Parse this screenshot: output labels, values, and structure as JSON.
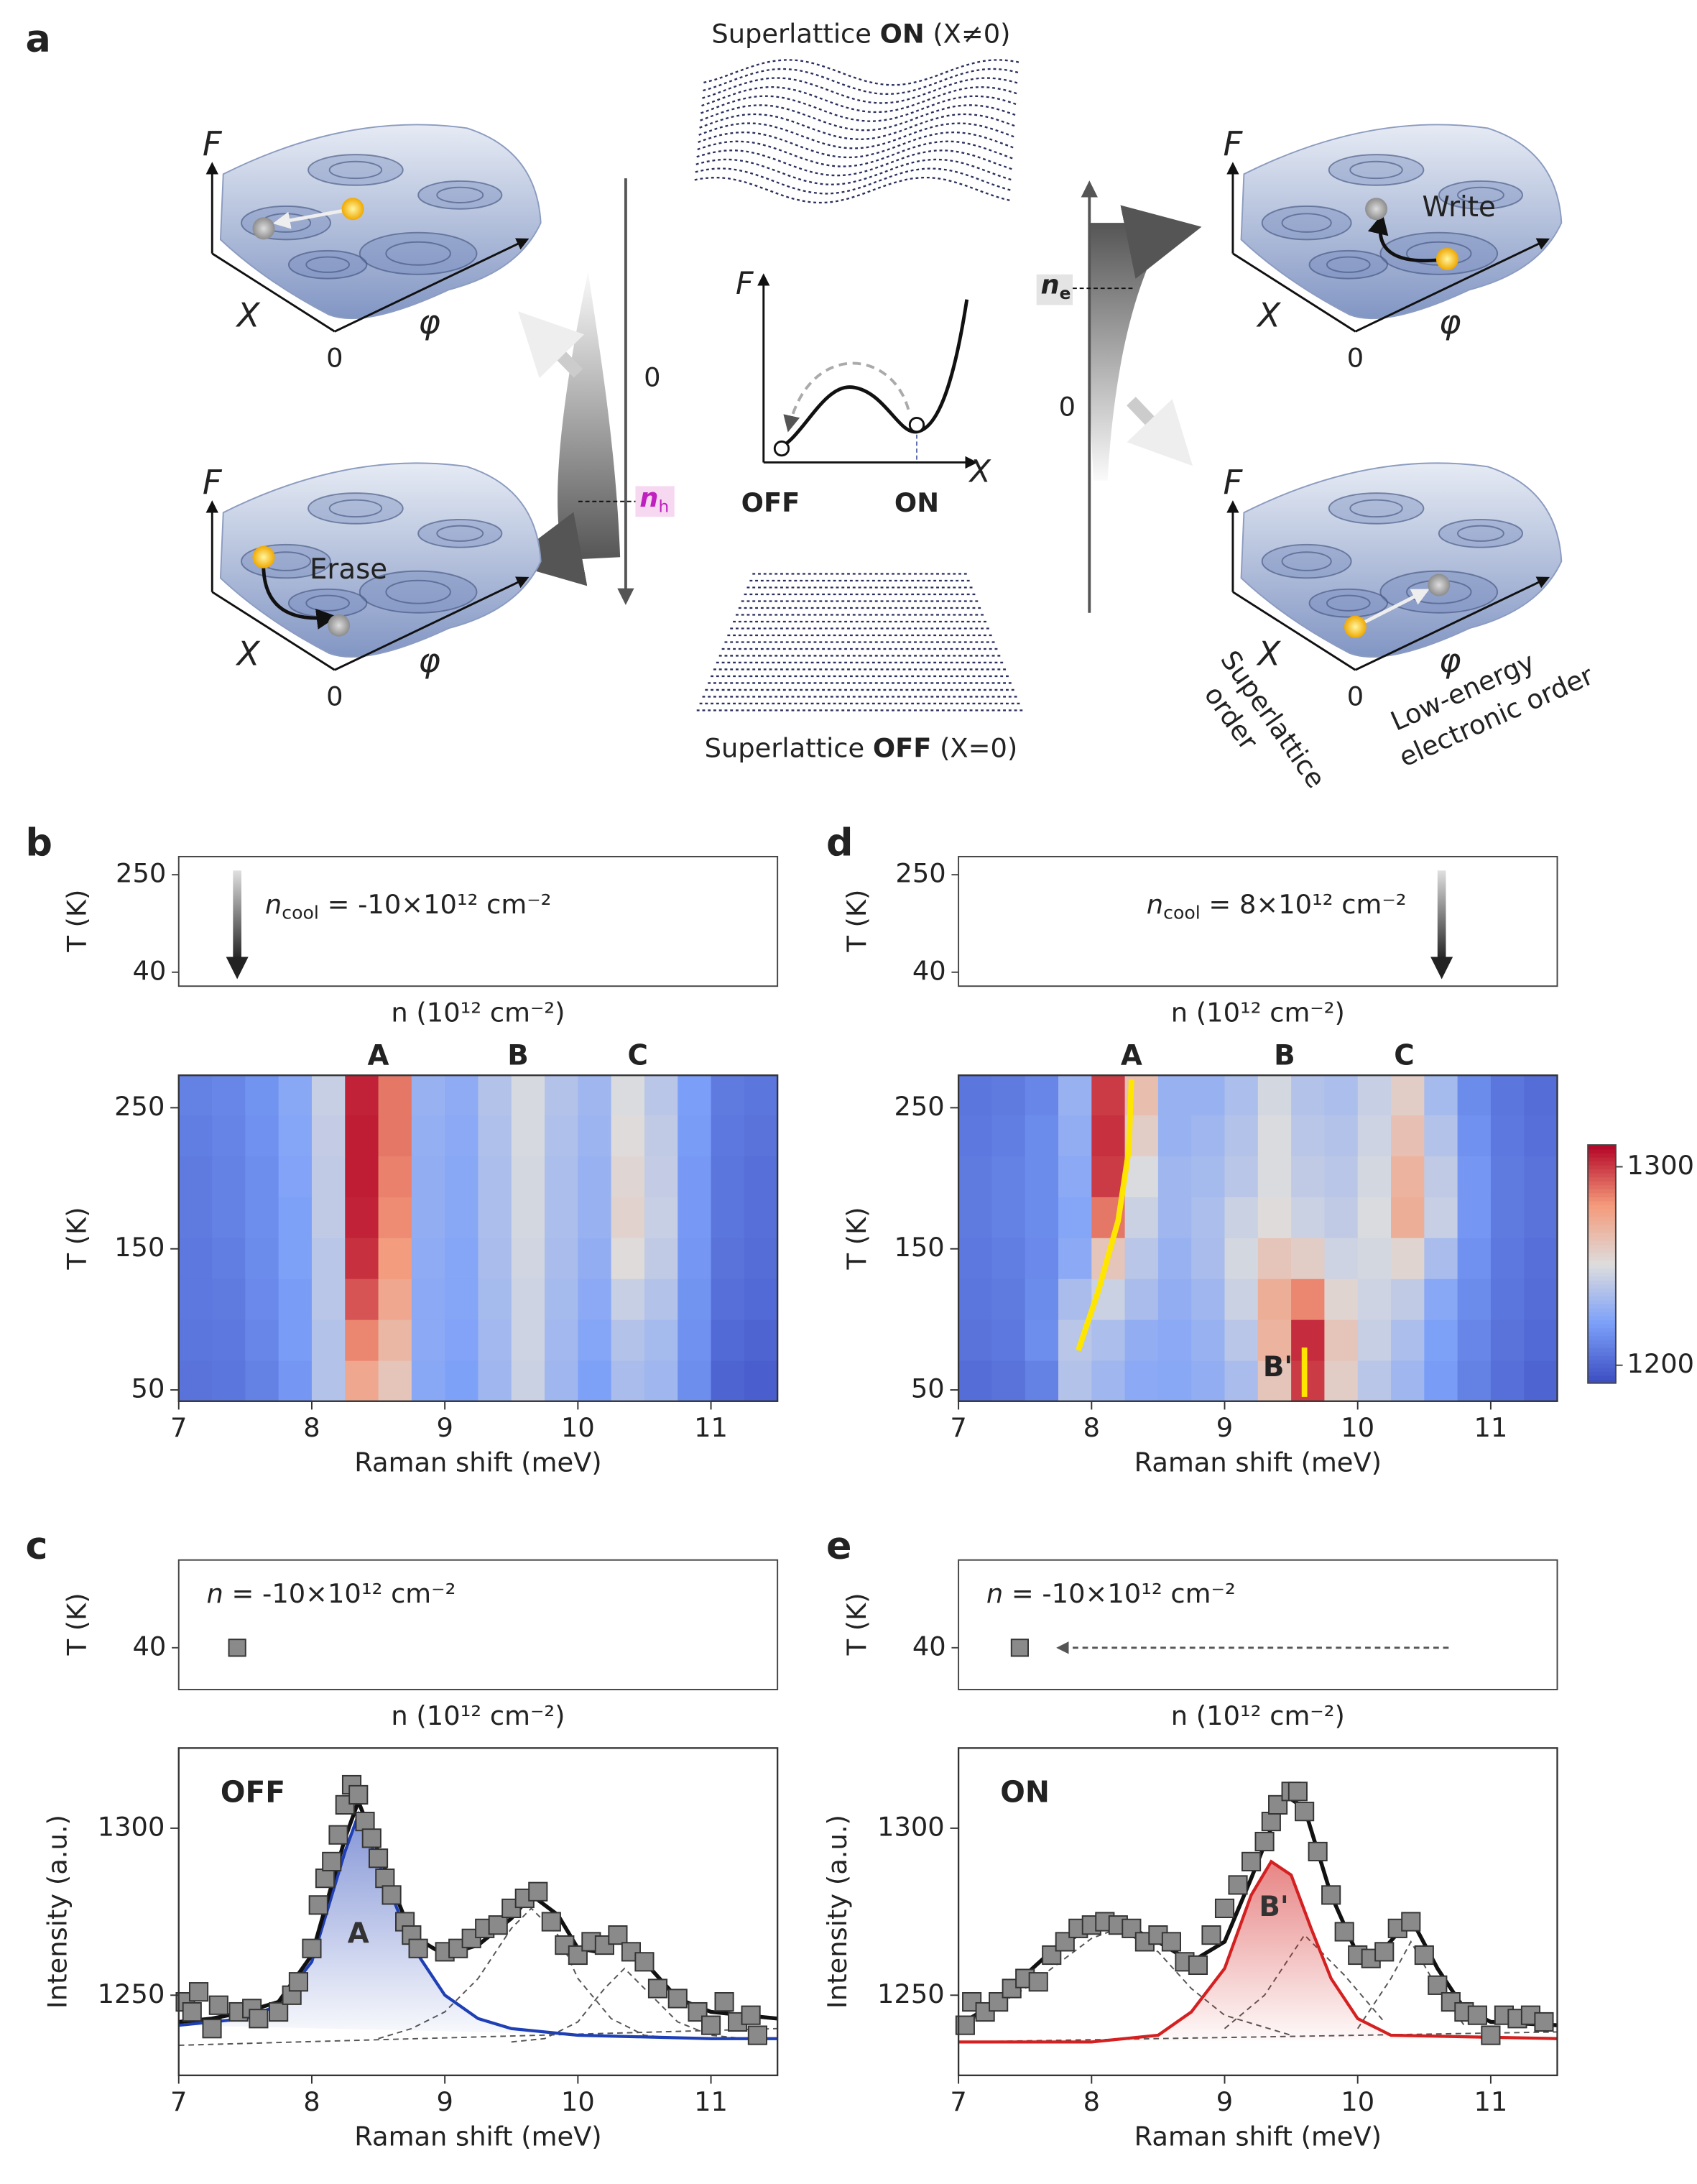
{
  "diagram": {
    "panel_label": "a",
    "landscapes": [
      {
        "axes": [
          "F",
          "X",
          "φ",
          "0"
        ]
      },
      {
        "axes": [
          "F",
          "X",
          "φ",
          "0"
        ],
        "action": "Erase"
      },
      {
        "axes": [
          "F",
          "X",
          "φ",
          "0"
        ],
        "action": "Write"
      },
      {
        "axes": [
          "F",
          "X",
          "φ",
          "0"
        ]
      }
    ],
    "on_title": {
      "prefix": "Superlattice",
      "state": "ON",
      "condition": "(X≠0)"
    },
    "off_title": {
      "prefix": "Superlattice",
      "state": "OFF",
      "condition": "(X=0)"
    },
    "energy_plot": {
      "ylabel": "F",
      "xlabel": "X",
      "states": [
        "OFF",
        "ON"
      ]
    },
    "left_axis": {
      "zero": "0",
      "marker": {
        "symbol": "n",
        "subscript": "h"
      }
    },
    "right_axis": {
      "zero": "0",
      "marker": {
        "symbol": "n",
        "subscript": "e"
      }
    },
    "axis_labels": {
      "superlattice": [
        "Superlattice",
        "order"
      ],
      "electronic": [
        "Low-energy",
        "electronic order"
      ]
    }
  },
  "chart_data": [
    {
      "type": "heatmap",
      "panel_label": "b",
      "inset": {
        "ylabel": "T (K)",
        "yticks": [
          250,
          40
        ],
        "ylim": [
          10,
          289
        ],
        "xlabel": "n (10¹² cm⁻²)",
        "annotation": {
          "symbol": "n",
          "subscript": "cool",
          "text": "= -10×10¹² cm⁻²"
        }
      },
      "peak_labels": [
        "A",
        "B",
        "C"
      ],
      "xlabel": "Raman shift (meV)",
      "ylabel": "T (K)",
      "xlim": [
        7,
        11.5
      ],
      "ylim": [
        42,
        273
      ],
      "xticks": [
        7,
        8,
        9,
        10,
        11
      ],
      "yticks": [
        50,
        150,
        250
      ],
      "colormap": [
        "#3b4cc0",
        "#7b9ff9",
        "#dddddd",
        "#f49a7b",
        "#b40426"
      ],
      "clim": [
        1191,
        1311
      ],
      "xbins": [
        7,
        7.25,
        7.5,
        7.75,
        8,
        8.25,
        8.5,
        8.75,
        9,
        9.25,
        9.5,
        9.75,
        10,
        10.25,
        10.5,
        10.75,
        11,
        11.25,
        11.5
      ],
      "ybins": [
        42,
        71,
        100,
        129,
        158,
        187,
        216,
        245,
        273
      ],
      "values": [
        [
          1205,
          1206,
          1210,
          1218,
          1238,
          1275,
          1262,
          1225,
          1222,
          1232,
          1245,
          1232,
          1222,
          1235,
          1232,
          1215,
          1200,
          1198
        ],
        [
          1206,
          1207,
          1212,
          1220,
          1238,
          1285,
          1268,
          1226,
          1223,
          1233,
          1246,
          1233,
          1224,
          1238,
          1234,
          1216,
          1202,
          1200
        ],
        [
          1207,
          1208,
          1213,
          1220,
          1240,
          1295,
          1275,
          1226,
          1224,
          1234,
          1246,
          1234,
          1226,
          1244,
          1238,
          1217,
          1204,
          1202
        ],
        [
          1207,
          1209,
          1214,
          1222,
          1240,
          1302,
          1280,
          1227,
          1224,
          1235,
          1247,
          1235,
          1228,
          1252,
          1242,
          1218,
          1205,
          1203
        ],
        [
          1208,
          1210,
          1215,
          1222,
          1242,
          1305,
          1284,
          1228,
          1225,
          1236,
          1248,
          1236,
          1230,
          1256,
          1244,
          1219,
          1206,
          1204
        ],
        [
          1208,
          1210,
          1215,
          1223,
          1242,
          1306,
          1286,
          1228,
          1225,
          1236,
          1248,
          1236,
          1230,
          1254,
          1243,
          1219,
          1206,
          1204
        ],
        [
          1209,
          1211,
          1216,
          1224,
          1243,
          1306,
          1288,
          1229,
          1226,
          1237,
          1249,
          1237,
          1231,
          1252,
          1242,
          1220,
          1207,
          1205
        ],
        [
          1210,
          1212,
          1217,
          1225,
          1244,
          1305,
          1288,
          1230,
          1227,
          1238,
          1249,
          1238,
          1232,
          1250,
          1240,
          1221,
          1208,
          1206
        ]
      ]
    },
    {
      "type": "heatmap",
      "panel_label": "d",
      "inset": {
        "ylabel": "T (K)",
        "yticks": [
          250,
          40
        ],
        "ylim": [
          10,
          289
        ],
        "xlabel": "n (10¹² cm⁻²)",
        "annotation": {
          "symbol": "n",
          "subscript": "cool",
          "text": "= 8×10¹² cm⁻²"
        }
      },
      "peak_labels": [
        "A",
        "B",
        "C",
        "B'"
      ],
      "xlabel": "Raman shift (meV)",
      "ylabel": "T (K)",
      "xlim": [
        7,
        11.5
      ],
      "ylim": [
        42,
        273
      ],
      "xticks": [
        7,
        8,
        9,
        10,
        11
      ],
      "yticks": [
        50,
        150,
        250
      ],
      "colormap": [
        "#3b4cc0",
        "#7b9ff9",
        "#dddddd",
        "#f49a7b",
        "#b40426"
      ],
      "clim": [
        1191,
        1311
      ],
      "colorbar": {
        "lim": [
          1191,
          1311
        ],
        "ticks": [
          1200,
          1300
        ]
      },
      "xbins": [
        7,
        7.25,
        7.5,
        7.75,
        8,
        8.25,
        8.5,
        8.75,
        9,
        9.25,
        9.5,
        9.75,
        10,
        10.25,
        10.5,
        10.75,
        11,
        11.25,
        11.5
      ],
      "ybins": [
        42,
        71,
        100,
        129,
        158,
        187,
        216,
        245,
        273
      ],
      "values": [
        [
          1203,
          1205,
          1210,
          1238,
          1232,
          1226,
          1225,
          1228,
          1235,
          1262,
          1300,
          1258,
          1240,
          1232,
          1220,
          1210,
          1204,
          1200
        ],
        [
          1205,
          1207,
          1215,
          1240,
          1236,
          1228,
          1226,
          1230,
          1240,
          1270,
          1303,
          1262,
          1244,
          1236,
          1222,
          1212,
          1205,
          1202
        ],
        [
          1206,
          1208,
          1214,
          1235,
          1245,
          1235,
          1228,
          1232,
          1245,
          1272,
          1285,
          1255,
          1246,
          1242,
          1225,
          1214,
          1206,
          1203
        ],
        [
          1207,
          1209,
          1213,
          1226,
          1262,
          1240,
          1230,
          1235,
          1248,
          1262,
          1258,
          1246,
          1248,
          1255,
          1235,
          1216,
          1207,
          1204
        ],
        [
          1208,
          1210,
          1214,
          1224,
          1288,
          1245,
          1232,
          1236,
          1245,
          1252,
          1245,
          1242,
          1250,
          1272,
          1244,
          1218,
          1208,
          1205
        ],
        [
          1208,
          1210,
          1214,
          1226,
          1300,
          1250,
          1232,
          1234,
          1240,
          1250,
          1242,
          1240,
          1248,
          1270,
          1242,
          1218,
          1208,
          1205
        ],
        [
          1207,
          1209,
          1214,
          1228,
          1302,
          1258,
          1230,
          1232,
          1238,
          1250,
          1240,
          1238,
          1246,
          1264,
          1238,
          1216,
          1207,
          1204
        ],
        [
          1206,
          1208,
          1212,
          1230,
          1300,
          1265,
          1230,
          1230,
          1236,
          1248,
          1238,
          1236,
          1244,
          1258,
          1234,
          1214,
          1206,
          1203
        ]
      ],
      "overlays": [
        {
          "color": "#ffe600",
          "x": [
            8.3,
            8.28,
            8.2,
            8.05,
            7.9
          ],
          "y": [
            270,
            220,
            170,
            120,
            78
          ]
        },
        {
          "color": "#ffe600",
          "x": [
            9.6,
            9.6
          ],
          "y": [
            80,
            45
          ]
        }
      ]
    },
    {
      "type": "scatter",
      "panel_label": "c",
      "inset": {
        "ylabel": "T (K)",
        "yticks": [
          40
        ],
        "ylim": [
          -20,
          166
        ],
        "xlabel": "n (10¹² cm⁻²)",
        "annotation": {
          "symbol": "n",
          "text": "= -10×10¹² cm⁻²"
        }
      },
      "state_label": "OFF",
      "xlabel": "Raman shift (meV)",
      "ylabel": "Intensity (a.u.)",
      "xlim": [
        7,
        11.5
      ],
      "ylim": [
        1226,
        1324
      ],
      "xticks": [
        7,
        8,
        9,
        10,
        11
      ],
      "yticks": [
        1250,
        1300
      ],
      "marker_color": "#8a8a8a",
      "x": [
        7.05,
        7.1,
        7.15,
        7.25,
        7.3,
        7.45,
        7.55,
        7.6,
        7.75,
        7.85,
        7.9,
        8.0,
        8.05,
        8.1,
        8.15,
        8.2,
        8.25,
        8.3,
        8.35,
        8.4,
        8.45,
        8.5,
        8.55,
        8.6,
        8.7,
        8.75,
        8.8,
        9.0,
        9.1,
        9.2,
        9.3,
        9.4,
        9.5,
        9.6,
        9.7,
        9.8,
        9.9,
        10.0,
        10.1,
        10.2,
        10.3,
        10.4,
        10.5,
        10.6,
        10.75,
        10.9,
        11.0,
        11.1,
        11.2,
        11.3,
        11.35
      ],
      "values": [
        1248,
        1245,
        1251,
        1240,
        1247,
        1245,
        1246,
        1243,
        1245,
        1250,
        1254,
        1264,
        1277,
        1285,
        1290,
        1298,
        1307,
        1313,
        1310,
        1302,
        1297,
        1291,
        1285,
        1280,
        1272,
        1268,
        1264,
        1263,
        1264,
        1267,
        1270,
        1271,
        1276,
        1279,
        1281,
        1272,
        1265,
        1262,
        1266,
        1265,
        1268,
        1263,
        1260,
        1252,
        1249,
        1245,
        1241,
        1248,
        1242,
        1244,
        1238
      ],
      "fits": [
        {
          "style": "dashed",
          "color": "#555555",
          "x": [
            7,
            11.5
          ],
          "values": [
            1235,
            1240
          ]
        },
        {
          "style": "dashed",
          "color": "#555555",
          "x": [
            8.5,
            8.75,
            9,
            9.25,
            9.5,
            9.65,
            9.85,
            10,
            10.25,
            10.5,
            10.75
          ],
          "values": [
            1237,
            1240,
            1245,
            1255,
            1270,
            1276,
            1268,
            1255,
            1243,
            1238,
            1237
          ]
        },
        {
          "style": "dashed",
          "color": "#555555",
          "x": [
            9.5,
            9.75,
            10,
            10.2,
            10.35,
            10.5,
            10.75,
            11,
            11.25
          ],
          "values": [
            1236,
            1237,
            1242,
            1252,
            1258,
            1252,
            1242,
            1238,
            1237
          ]
        },
        {
          "style": "peak",
          "color": "#1f3fb5",
          "label": "A",
          "x": [
            7,
            7.5,
            7.75,
            8,
            8.25,
            8.35,
            8.5,
            8.75,
            9,
            9.25,
            9.5,
            10,
            11,
            11.5
          ],
          "values": [
            1241,
            1243,
            1247,
            1260,
            1293,
            1304,
            1290,
            1265,
            1250,
            1243,
            1240,
            1238,
            1237,
            1237
          ]
        },
        {
          "style": "total",
          "color": "#111111",
          "x": [
            7,
            7.25,
            7.5,
            7.75,
            8,
            8.25,
            8.35,
            8.5,
            8.75,
            9,
            9.25,
            9.5,
            9.65,
            9.85,
            10,
            10.15,
            10.3,
            10.5,
            10.75,
            11,
            11.25,
            11.5
          ],
          "values": [
            1242,
            1243,
            1245,
            1248,
            1262,
            1297,
            1308,
            1293,
            1268,
            1262,
            1265,
            1273,
            1280,
            1274,
            1264,
            1263,
            1267,
            1260,
            1249,
            1245,
            1244,
            1243
          ]
        }
      ]
    },
    {
      "type": "scatter",
      "panel_label": "e",
      "inset": {
        "ylabel": "T (K)",
        "yticks": [
          40
        ],
        "ylim": [
          -20,
          166
        ],
        "xlabel": "n (10¹² cm⁻²)",
        "annotation": {
          "symbol": "n",
          "text": "= -10×10¹² cm⁻²"
        }
      },
      "state_label": "ON",
      "xlabel": "Raman shift (meV)",
      "ylabel": "Intensity (a.u.)",
      "xlim": [
        7,
        11.5
      ],
      "ylim": [
        1226,
        1324
      ],
      "xticks": [
        7,
        8,
        9,
        10,
        11
      ],
      "yticks": [
        1250,
        1300
      ],
      "marker_color": "#8a8a8a",
      "x": [
        7.05,
        7.1,
        7.2,
        7.3,
        7.4,
        7.5,
        7.6,
        7.7,
        7.8,
        7.9,
        8.0,
        8.1,
        8.2,
        8.3,
        8.4,
        8.5,
        8.6,
        8.7,
        8.8,
        8.9,
        9.0,
        9.1,
        9.2,
        9.3,
        9.35,
        9.4,
        9.5,
        9.55,
        9.6,
        9.7,
        9.8,
        9.9,
        10.0,
        10.1,
        10.2,
        10.3,
        10.4,
        10.5,
        10.6,
        10.7,
        10.8,
        10.9,
        11.0,
        11.1,
        11.2,
        11.3,
        11.4
      ],
      "values": [
        1241,
        1248,
        1245,
        1248,
        1252,
        1255,
        1254,
        1262,
        1266,
        1270,
        1271,
        1272,
        1271,
        1270,
        1266,
        1268,
        1266,
        1260,
        1259,
        1268,
        1276,
        1283,
        1290,
        1296,
        1302,
        1307,
        1311,
        1311,
        1305,
        1293,
        1280,
        1269,
        1262,
        1261,
        1263,
        1270,
        1272,
        1262,
        1253,
        1248,
        1245,
        1244,
        1238,
        1244,
        1243,
        1244,
        1242
      ],
      "fits": [
        {
          "style": "dashed",
          "color": "#555555",
          "x": [
            7,
            11.5
          ],
          "values": [
            1236,
            1239
          ]
        },
        {
          "style": "dashed",
          "color": "#555555",
          "x": [
            7,
            7.5,
            8,
            8.2,
            8.5,
            8.75,
            9,
            9.5
          ],
          "values": [
            1240,
            1252,
            1267,
            1270,
            1263,
            1252,
            1244,
            1238
          ]
        },
        {
          "style": "dashed",
          "color": "#555555",
          "x": [
            9,
            9.3,
            9.6,
            9.9,
            10.2
          ],
          "values": [
            1240,
            1250,
            1268,
            1256,
            1242
          ]
        },
        {
          "style": "dashed",
          "color": "#555555",
          "x": [
            10,
            10.25,
            10.4,
            10.6,
            10.8
          ],
          "values": [
            1240,
            1255,
            1266,
            1252,
            1241
          ]
        },
        {
          "style": "peak",
          "color": "#d42020",
          "label": "B'",
          "x": [
            7,
            8,
            8.5,
            8.75,
            9,
            9.2,
            9.35,
            9.5,
            9.65,
            9.8,
            10,
            10.25,
            11.5
          ],
          "values": [
            1236,
            1236,
            1238,
            1245,
            1258,
            1280,
            1290,
            1286,
            1270,
            1255,
            1243,
            1238,
            1237
          ]
        },
        {
          "style": "total",
          "color": "#111111",
          "x": [
            7,
            7.25,
            7.5,
            7.75,
            8,
            8.25,
            8.5,
            8.75,
            9,
            9.2,
            9.45,
            9.6,
            9.8,
            10,
            10.2,
            10.4,
            10.6,
            10.8,
            11,
            11.5
          ],
          "values": [
            1241,
            1247,
            1256,
            1265,
            1270,
            1271,
            1266,
            1260,
            1266,
            1285,
            1310,
            1306,
            1280,
            1262,
            1264,
            1273,
            1258,
            1246,
            1242,
            1241
          ]
        }
      ]
    }
  ]
}
